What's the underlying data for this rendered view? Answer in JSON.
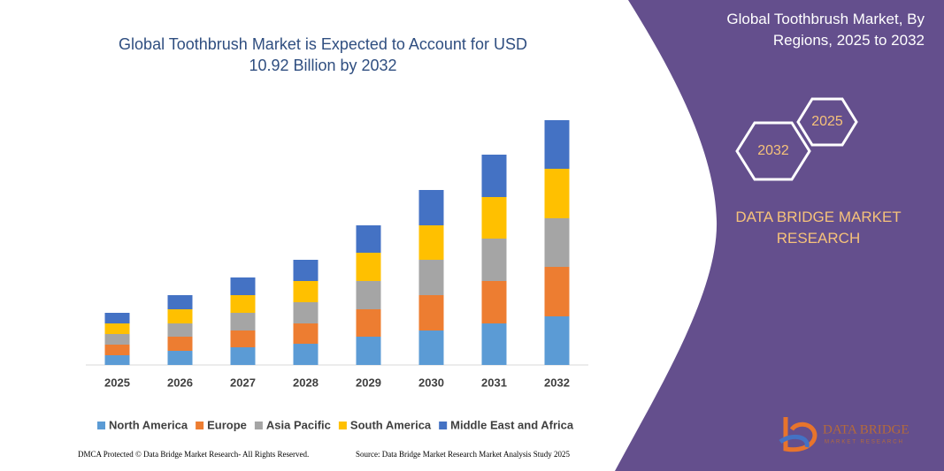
{
  "chart_data": {
    "type": "stacked_bar",
    "title": "Global Toothbrush Market is Expected to Account for USD 10.92 Billion by 2032",
    "categories": [
      "2025",
      "2026",
      "2027",
      "2028",
      "2029",
      "2030",
      "2031",
      "2032"
    ],
    "series": [
      {
        "name": "North America",
        "color": "#5b9bd5",
        "values": [
          11,
          16,
          20,
          24,
          32,
          39,
          47,
          55
        ]
      },
      {
        "name": "Europe",
        "color": "#ed7d31",
        "values": [
          12,
          16,
          19,
          23,
          31,
          40,
          48,
          56
        ]
      },
      {
        "name": "Asia Pacific",
        "color": "#a5a5a5",
        "values": [
          12,
          15,
          20,
          24,
          32,
          40,
          48,
          55
        ]
      },
      {
        "name": "South America",
        "color": "#ffc000",
        "values": [
          12,
          16,
          20,
          24,
          32,
          39,
          47,
          56
        ]
      },
      {
        "name": "Middle East and Africa",
        "color": "#4472c4",
        "values": [
          12,
          16,
          20,
          24,
          31,
          40,
          48,
          55
        ]
      }
    ],
    "ylim": [
      0,
      280
    ],
    "legend": "bottom"
  },
  "panel": {
    "title": "Global Toothbrush Market, By Regions, 2025 to 2032",
    "hex_small": "2025",
    "hex_large": "2032",
    "brand": "DATA BRIDGE MARKET RESEARCH"
  },
  "logo": {
    "name": "DATA BRIDGE",
    "tagline": "MARKET RESEARCH"
  },
  "footer": {
    "copyright": "DMCA Protected © Data Bridge Market Research- All Rights Reserved.",
    "source": "Source: Data Bridge Market Research Market Analysis Study 2025"
  }
}
